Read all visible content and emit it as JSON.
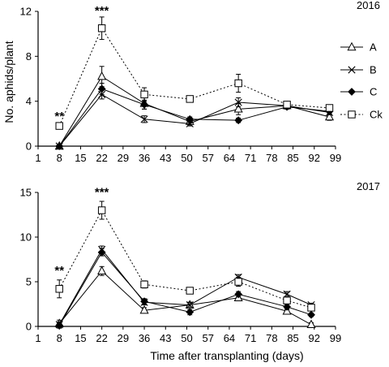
{
  "xlabel": "Time after transplanting (days)",
  "legend": [
    {
      "key": "A",
      "label": "A",
      "marker": "triangle",
      "dash": "solid"
    },
    {
      "key": "B",
      "label": "B",
      "marker": "x",
      "dash": "solid"
    },
    {
      "key": "C",
      "label": "C",
      "marker": "diamond",
      "dash": "solid"
    },
    {
      "key": "Ck",
      "label": "Ck",
      "marker": "square",
      "dash": "dotted"
    }
  ],
  "chart_data": [
    {
      "type": "line",
      "year_label": "2016",
      "ylabel": "No. aphids/plant",
      "xlim": [
        1,
        99
      ],
      "ylim": [
        0,
        12
      ],
      "xticks": [
        1,
        8,
        15,
        22,
        29,
        36,
        43,
        50,
        57,
        64,
        71,
        78,
        85,
        92,
        99
      ],
      "yticks": [
        0,
        4,
        8,
        12
      ],
      "annotations": [
        {
          "text": "**",
          "x": 8,
          "y": 2.3
        },
        {
          "text": "***",
          "x": 22,
          "y": 11.7
        }
      ],
      "series": [
        {
          "name": "A",
          "x": [
            8,
            22,
            36,
            51,
            67,
            83,
            97
          ],
          "y": [
            0,
            6.2,
            3.8,
            2.2,
            3.3,
            3.6,
            2.6
          ],
          "err": [
            0.1,
            0.9,
            0.5,
            0.3,
            0.5,
            0.2,
            0.3
          ]
        },
        {
          "name": "B",
          "x": [
            8,
            22,
            36,
            51,
            67,
            83,
            97
          ],
          "y": [
            0,
            4.6,
            2.4,
            2.0,
            3.9,
            3.6,
            3.0
          ],
          "err": [
            0.1,
            0.4,
            0.3,
            0.2,
            0.4,
            0.2,
            0.2
          ]
        },
        {
          "name": "C",
          "x": [
            8,
            22,
            36,
            51,
            67,
            83,
            97
          ],
          "y": [
            0,
            5.1,
            3.7,
            2.4,
            2.3,
            3.5,
            3.1
          ],
          "err": [
            0.1,
            0.5,
            0.4,
            0.2,
            0.2,
            0.2,
            0.2
          ]
        },
        {
          "name": "Ck",
          "x": [
            8,
            22,
            36,
            51,
            67,
            83,
            97
          ],
          "y": [
            1.8,
            10.5,
            4.6,
            4.2,
            5.6,
            3.7,
            3.4
          ],
          "err": [
            0.1,
            1.0,
            0.6,
            0.2,
            0.8,
            0.2,
            0.2
          ]
        }
      ]
    },
    {
      "type": "line",
      "year_label": "2017",
      "ylabel": "",
      "xlim": [
        1,
        99
      ],
      "ylim": [
        0,
        15
      ],
      "xticks": [
        1,
        8,
        15,
        22,
        29,
        36,
        43,
        50,
        57,
        64,
        71,
        78,
        85,
        92,
        99
      ],
      "yticks": [
        0,
        5,
        10,
        15
      ],
      "annotations": [
        {
          "text": "**",
          "x": 8,
          "y": 5.8
        },
        {
          "text": "***",
          "x": 22,
          "y": 14.6
        }
      ],
      "series": [
        {
          "name": "A",
          "x": [
            8,
            22,
            36,
            51,
            67,
            83,
            91
          ],
          "y": [
            0.3,
            6.2,
            1.8,
            2.4,
            3.2,
            1.7,
            0.2
          ],
          "err": [
            0.4,
            0.5,
            0.3,
            0.3,
            0.3,
            0.3,
            0.2
          ]
        },
        {
          "name": "B",
          "x": [
            8,
            22,
            36,
            51,
            67,
            83,
            91
          ],
          "y": [
            0.2,
            8.6,
            2.7,
            2.4,
            5.5,
            3.6,
            2.4
          ],
          "err": [
            0.3,
            0.4,
            0.3,
            0.3,
            0.3,
            0.3,
            0.2
          ]
        },
        {
          "name": "C",
          "x": [
            8,
            22,
            36,
            51,
            67,
            83,
            91
          ],
          "y": [
            0.1,
            8.3,
            2.8,
            1.6,
            3.6,
            2.2,
            1.3
          ],
          "err": [
            0.3,
            0.4,
            0.3,
            0.3,
            0.3,
            0.3,
            0.2
          ]
        },
        {
          "name": "Ck",
          "x": [
            8,
            22,
            36,
            51,
            67,
            83,
            91
          ],
          "y": [
            4.2,
            13.0,
            4.7,
            4.0,
            5.0,
            2.9,
            2.1
          ],
          "err": [
            1.0,
            1.0,
            0.4,
            0.3,
            0.5,
            0.4,
            0.3
          ]
        }
      ]
    }
  ]
}
